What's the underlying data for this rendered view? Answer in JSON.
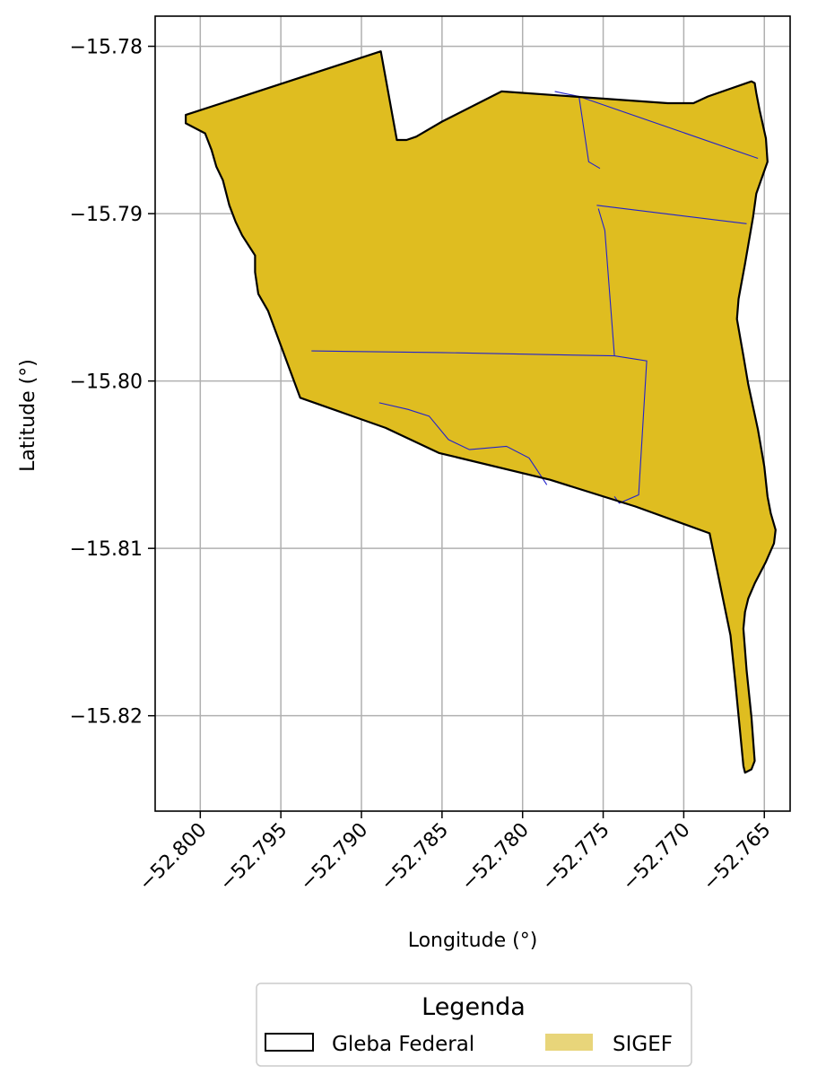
{
  "chart_data": {
    "type": "map",
    "xlabel": "Longitude (°)",
    "ylabel": "Latitude (°)",
    "xlim": [
      -52.8028,
      -52.7634
    ],
    "ylim": [
      -15.8257,
      -15.7782
    ],
    "x_ticks": [
      -52.8,
      -52.795,
      -52.79,
      -52.785,
      -52.78,
      -52.775,
      -52.77,
      -52.765
    ],
    "x_tick_labels": [
      "−52.800",
      "−52.795",
      "−52.790",
      "−52.785",
      "−52.780",
      "−52.775",
      "−52.770",
      "−52.765"
    ],
    "y_ticks": [
      -15.78,
      -15.79,
      -15.8,
      -15.81,
      -15.82
    ],
    "y_tick_labels": [
      "−15.78",
      "−15.79",
      "−15.80",
      "−15.81",
      "−15.82"
    ],
    "grid": true,
    "colors": {
      "gleba_edge": "#000000",
      "sigef_fill": "#dfbd20",
      "sigef_legend_fill": "#e8d57a",
      "parcel_lines": "#2222cc",
      "grid": "#b0b0b0"
    },
    "gleba_federal_boundary": [
      [
        -52.8009,
        -15.7841
      ],
      [
        -52.7888,
        -15.7803
      ],
      [
        -52.7878,
        -15.7856
      ],
      [
        -52.7872,
        -15.7856
      ],
      [
        -52.7866,
        -15.7854
      ],
      [
        -52.785,
        -15.7845
      ],
      [
        -52.7813,
        -15.7827
      ],
      [
        -52.771,
        -15.7834
      ],
      [
        -52.7694,
        -15.7834
      ],
      [
        -52.7685,
        -15.783
      ],
      [
        -52.7658,
        -15.7821
      ],
      [
        -52.7656,
        -15.7822
      ],
      [
        -52.7655,
        -15.7828
      ],
      [
        -52.7653,
        -15.7838
      ],
      [
        -52.7649,
        -15.7855
      ],
      [
        -52.7648,
        -15.7869
      ],
      [
        -52.7655,
        -15.7888
      ],
      [
        -52.7657,
        -15.7902
      ],
      [
        -52.7662,
        -15.793
      ],
      [
        -52.7666,
        -15.7951
      ],
      [
        -52.7667,
        -15.7963
      ],
      [
        -52.7663,
        -15.7985
      ],
      [
        -52.766,
        -15.8002
      ],
      [
        -52.7654,
        -15.8029
      ],
      [
        -52.765,
        -15.8051
      ],
      [
        -52.7648,
        -15.8069
      ],
      [
        -52.7646,
        -15.8079
      ],
      [
        -52.7643,
        -15.8089
      ],
      [
        -52.7644,
        -15.8097
      ],
      [
        -52.7649,
        -15.8108
      ],
      [
        -52.7656,
        -15.8121
      ],
      [
        -52.766,
        -15.813
      ],
      [
        -52.7662,
        -15.8138
      ],
      [
        -52.7663,
        -15.8148
      ],
      [
        -52.7661,
        -15.8173
      ],
      [
        -52.7658,
        -15.8201
      ],
      [
        -52.7656,
        -15.8227
      ],
      [
        -52.7658,
        -15.8232
      ],
      [
        -52.7662,
        -15.8234
      ],
      [
        -52.7663,
        -15.823
      ],
      [
        -52.7666,
        -15.82
      ],
      [
        -52.7668,
        -15.818
      ],
      [
        -52.7671,
        -15.8152
      ],
      [
        -52.7684,
        -15.8091
      ],
      [
        -52.773,
        -15.8075
      ],
      [
        -52.7783,
        -15.8059
      ],
      [
        -52.7852,
        -15.8043
      ],
      [
        -52.7885,
        -15.8028
      ],
      [
        -52.7938,
        -15.801
      ],
      [
        -52.7958,
        -15.7958
      ],
      [
        -52.7964,
        -15.7948
      ],
      [
        -52.7966,
        -15.7935
      ],
      [
        -52.7966,
        -15.7925
      ],
      [
        -52.797,
        -15.7919
      ],
      [
        -52.7974,
        -15.7913
      ],
      [
        -52.7978,
        -15.7905
      ],
      [
        -52.7982,
        -15.7895
      ],
      [
        -52.7986,
        -15.788
      ],
      [
        -52.799,
        -15.7872
      ],
      [
        -52.7993,
        -15.7862
      ],
      [
        -52.7997,
        -15.7852
      ],
      [
        -52.8005,
        -15.7848
      ],
      [
        -52.8009,
        -15.7846
      ],
      [
        -52.8009,
        -15.7841
      ]
    ],
    "sigef_parcel_lines": [
      [
        [
          -52.778,
          -15.7827
        ],
        [
          -52.7765,
          -15.783
        ],
        [
          -52.7759,
          -15.7869
        ],
        [
          -52.7752,
          -15.7873
        ]
      ],
      [
        [
          -52.7765,
          -15.783
        ],
        [
          -52.7654,
          -15.7867
        ]
      ],
      [
        [
          -52.7754,
          -15.7895
        ],
        [
          -52.7661,
          -15.7906
        ]
      ],
      [
        [
          -52.7753,
          -15.7897
        ],
        [
          -52.7749,
          -15.791
        ],
        [
          -52.7743,
          -15.7985
        ]
      ],
      [
        [
          -52.7931,
          -15.7982
        ],
        [
          -52.7851,
          -15.7983
        ],
        [
          -52.7743,
          -15.7985
        ],
        [
          -52.7723,
          -15.7988
        ],
        [
          -52.7728,
          -15.8068
        ],
        [
          -52.774,
          -15.8073
        ],
        [
          -52.7743,
          -15.8069
        ]
      ],
      [
        [
          -52.7889,
          -15.8013
        ],
        [
          -52.7871,
          -15.8017
        ],
        [
          -52.7858,
          -15.8021
        ],
        [
          -52.7846,
          -15.8035
        ],
        [
          -52.7833,
          -15.8041
        ],
        [
          -52.781,
          -15.8039
        ],
        [
          -52.7796,
          -15.8046
        ],
        [
          -52.7785,
          -15.8062
        ]
      ]
    ]
  },
  "legend": {
    "title": "Legenda",
    "items": [
      {
        "label": "Gleba Federal",
        "style": "outline"
      },
      {
        "label": "SIGEF",
        "style": "fill"
      }
    ]
  }
}
